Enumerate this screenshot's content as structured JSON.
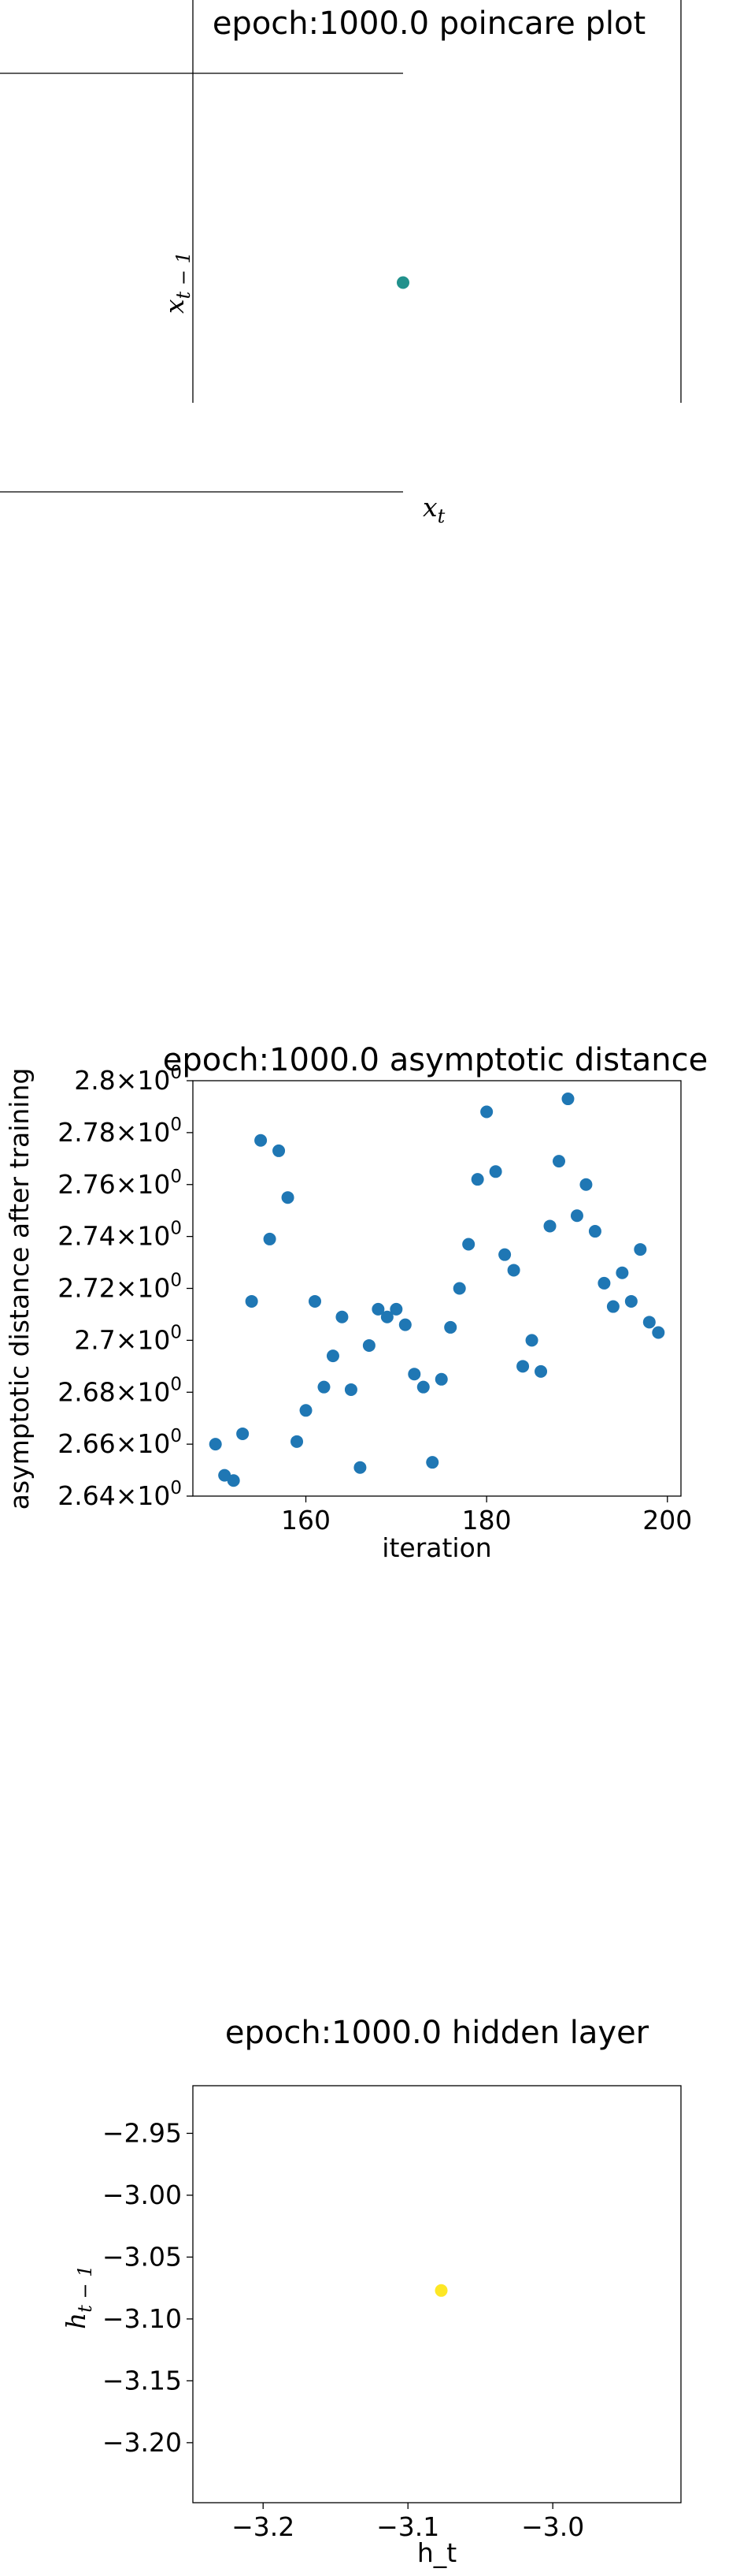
{
  "chart_data": [
    {
      "type": "scatter",
      "title": "epoch:1000.0 poincare plot",
      "xlabel": "x",
      "xlabel_sub": "t",
      "ylabel": "x",
      "ylabel_sub": "t − 1",
      "points": [
        {
          "x": 0.0,
          "y": 0.0
        }
      ],
      "xlim": [
        -1.0,
        0.0
      ],
      "ylim": [
        -1.0,
        1.0
      ],
      "color": "#21918c",
      "spines": "centered"
    },
    {
      "type": "scatter",
      "title": "epoch:1000.0 asymptotic distance",
      "xlabel": "iteration",
      "ylabel": "asymptotic distance after training",
      "xlim": [
        147.5,
        201.5
      ],
      "ylim": [
        2.64,
        2.8
      ],
      "xticks": [
        160,
        180,
        200
      ],
      "yticks": [
        {
          "value": 2.64,
          "mantissa": "2.64",
          "exp": "0"
        },
        {
          "value": 2.66,
          "mantissa": "2.66",
          "exp": "0"
        },
        {
          "value": 2.68,
          "mantissa": "2.68",
          "exp": "0"
        },
        {
          "value": 2.7,
          "mantissa": "2.7",
          "exp": "0"
        },
        {
          "value": 2.72,
          "mantissa": "2.72",
          "exp": "0"
        },
        {
          "value": 2.74,
          "mantissa": "2.74",
          "exp": "0"
        },
        {
          "value": 2.76,
          "mantissa": "2.76",
          "exp": "0"
        },
        {
          "value": 2.78,
          "mantissa": "2.78",
          "exp": "0"
        },
        {
          "value": 2.8,
          "mantissa": "2.8",
          "exp": "0"
        }
      ],
      "times_sign": "×",
      "base": "10",
      "color": "#1f77b4",
      "x": [
        150,
        151,
        152,
        153,
        154,
        155,
        156,
        157,
        158,
        159,
        160,
        161,
        162,
        163,
        164,
        165,
        166,
        167,
        168,
        169,
        170,
        171,
        172,
        173,
        174,
        175,
        176,
        177,
        178,
        179,
        180,
        181,
        182,
        183,
        184,
        185,
        186,
        187,
        188,
        189,
        190,
        191,
        192,
        193,
        194,
        195,
        196,
        197,
        198,
        199
      ],
      "y": [
        2.66,
        2.648,
        2.646,
        2.664,
        2.715,
        2.777,
        2.739,
        2.773,
        2.755,
        2.661,
        2.673,
        2.715,
        2.682,
        2.694,
        2.709,
        2.681,
        2.651,
        2.698,
        2.712,
        2.709,
        2.712,
        2.706,
        2.687,
        2.682,
        2.653,
        2.685,
        2.705,
        2.72,
        2.737,
        2.762,
        2.788,
        2.765,
        2.733,
        2.727,
        2.69,
        2.7,
        2.688,
        2.744,
        2.769,
        2.793,
        2.748,
        2.76,
        2.742,
        2.722,
        2.713,
        2.726,
        2.715,
        2.735,
        2.707,
        2.703
      ]
    },
    {
      "type": "scatter",
      "title": "epoch:1000.0 hidden layer",
      "xlabel": "h_t",
      "ylabel": "h",
      "ylabel_sub": "t − 1",
      "xlim": [
        -3.2485,
        -2.9115
      ],
      "ylim": [
        -3.2485,
        -2.9115
      ],
      "xticks": [
        {
          "value": -3.2,
          "label": "−3.2"
        },
        {
          "value": -3.1,
          "label": "−3.1"
        },
        {
          "value": -3.0,
          "label": "−3.0"
        }
      ],
      "yticks": [
        {
          "value": -2.95,
          "label": "−2.95"
        },
        {
          "value": -3.0,
          "label": "−3.00"
        },
        {
          "value": -3.05,
          "label": "−3.05"
        },
        {
          "value": -3.1,
          "label": "−3.10"
        },
        {
          "value": -3.15,
          "label": "−3.15"
        },
        {
          "value": -3.2,
          "label": "−3.20"
        }
      ],
      "points": [
        {
          "x": -3.077,
          "y": -3.077
        }
      ],
      "color": "#fde725"
    }
  ]
}
